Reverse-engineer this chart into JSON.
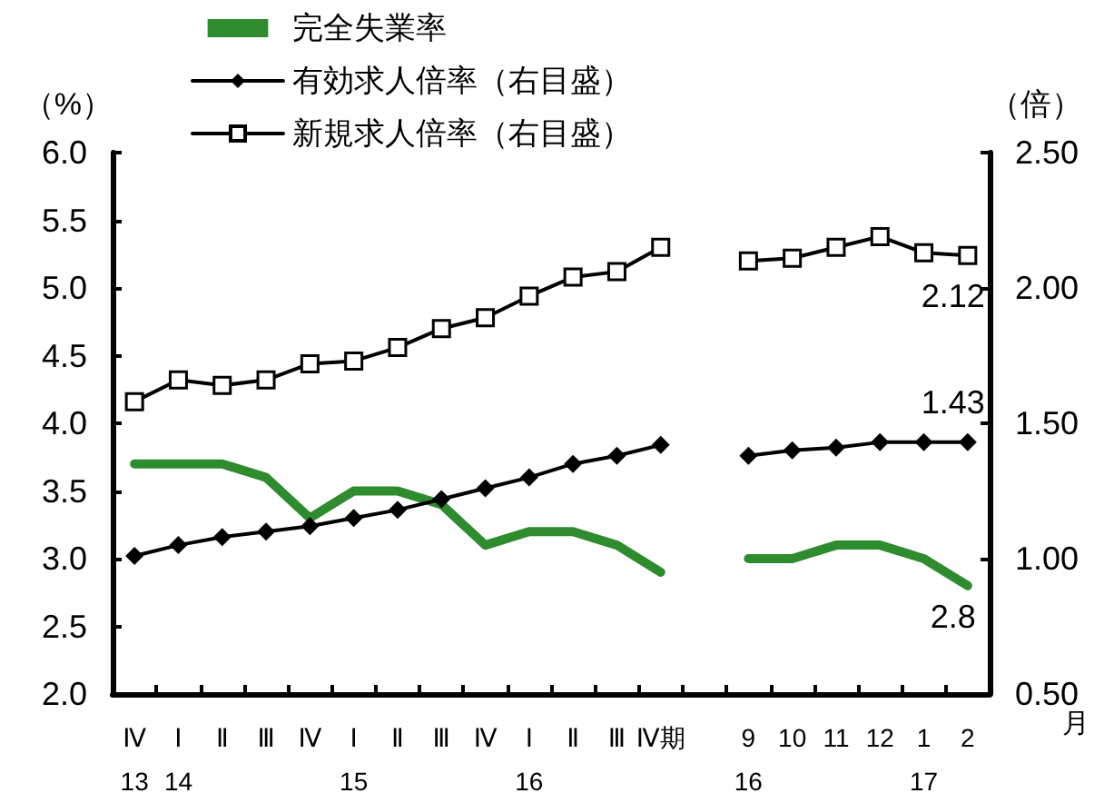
{
  "chart_data": {
    "type": "line",
    "ylabel": "（%）",
    "y2label": "（倍）",
    "categories": [
      "Ⅳ\n13",
      "Ⅰ\n14",
      "Ⅱ",
      "Ⅲ",
      "Ⅳ",
      "Ⅰ\n15",
      "Ⅱ",
      "Ⅲ",
      "Ⅳ",
      "Ⅰ\n16",
      "Ⅱ",
      "Ⅲ",
      "Ⅳ期",
      null,
      "9\n16",
      "10",
      "11",
      "12",
      "1\n17",
      "2"
    ],
    "series": [
      {
        "name": "完全失業率",
        "color": "#2e8b2e",
        "marker": "none",
        "values": [
          3.7,
          3.7,
          3.7,
          3.6,
          3.3,
          3.5,
          3.5,
          3.4,
          3.1,
          3.2,
          3.2,
          3.1,
          2.9,
          null,
          3.0,
          3.0,
          3.1,
          3.1,
          3.0,
          2.8
        ],
        "value_labels": [
          null,
          null,
          null,
          null,
          null,
          null,
          null,
          null,
          null,
          null,
          null,
          null,
          null,
          null,
          null,
          null,
          null,
          null,
          null,
          "2.8"
        ]
      },
      {
        "name": "有効求人倍率（右目盛）",
        "color": "#000000",
        "marker": "diamond",
        "axis": "y2",
        "values": [
          1.01,
          1.05,
          1.08,
          1.1,
          1.12,
          1.15,
          1.18,
          1.22,
          1.26,
          1.3,
          1.35,
          1.38,
          1.42,
          null,
          1.38,
          1.4,
          1.41,
          1.43,
          1.43,
          1.43
        ],
        "value_labels": [
          null,
          null,
          null,
          null,
          null,
          null,
          null,
          null,
          null,
          null,
          null,
          null,
          null,
          null,
          null,
          null,
          null,
          null,
          null,
          "1.43"
        ]
      },
      {
        "name": "新規求人倍率（右目盛）",
        "color": "#000000",
        "marker": "square",
        "axis": "y2",
        "values": [
          1.58,
          1.66,
          1.64,
          1.66,
          1.72,
          1.73,
          1.78,
          1.85,
          1.89,
          1.97,
          2.04,
          2.06,
          2.15,
          null,
          2.1,
          2.11,
          2.15,
          2.19,
          2.13,
          2.12
        ],
        "value_labels": [
          null,
          null,
          null,
          null,
          null,
          null,
          null,
          null,
          null,
          null,
          null,
          null,
          null,
          null,
          null,
          null,
          null,
          null,
          null,
          "2.12"
        ]
      }
    ],
    "ylim": [
      2.0,
      6.0
    ],
    "yticks": [
      {
        "value": 2.0,
        "label": "2.0"
      },
      {
        "value": 2.5,
        "label": "2.5"
      },
      {
        "value": 3.0,
        "label": "3.0"
      },
      {
        "value": 3.5,
        "label": "3.5"
      },
      {
        "value": 4.0,
        "label": "4.0"
      },
      {
        "value": 4.5,
        "label": "4.5"
      },
      {
        "value": 5.0,
        "label": "5.0"
      },
      {
        "value": 5.5,
        "label": "5.5"
      },
      {
        "value": 6.0,
        "label": "6.0"
      }
    ],
    "y2lim": [
      0.5,
      2.5
    ],
    "y2ticks": [
      {
        "value": 0.5,
        "label": "0.50"
      },
      {
        "value": 1.0,
        "label": "1.00"
      },
      {
        "value": 1.5,
        "label": "1.50"
      },
      {
        "value": 2.0,
        "label": "2.00"
      },
      {
        "value": 2.5,
        "label": "2.50"
      }
    ],
    "annotations": [
      "月"
    ],
    "grid": false,
    "legend": "top left"
  }
}
